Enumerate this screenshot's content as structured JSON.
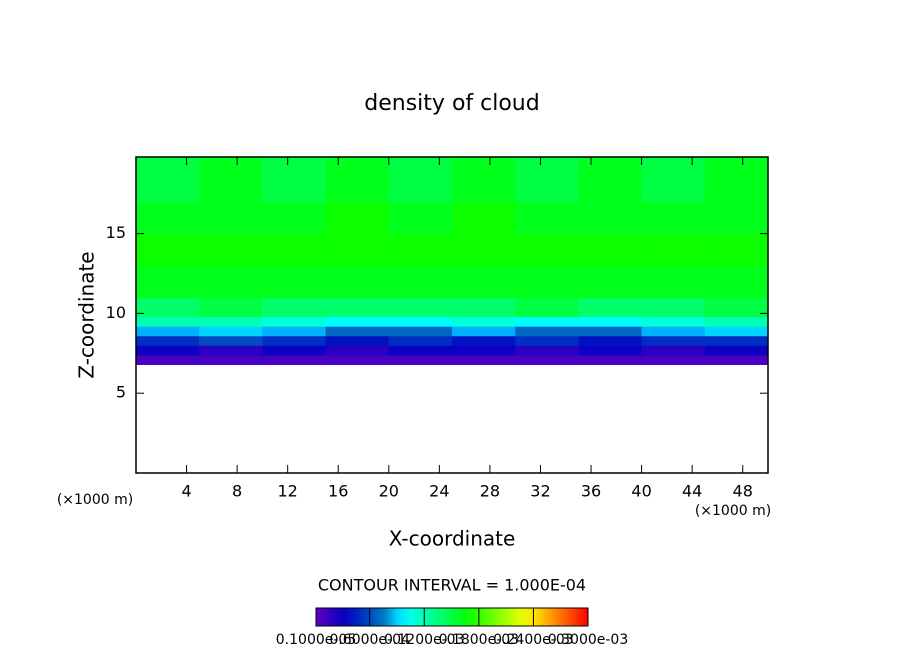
{
  "chart_data": {
    "type": "heatmap",
    "title": "density of cloud",
    "x_label": "X-coordinate",
    "y_label": "Z-coordinate",
    "x_unit": "(×1000 m)",
    "y_unit": "(×1000 m)",
    "annotation": "CONTOUR INTERVAL = 1.000E-04",
    "xlim": [
      0,
      50
    ],
    "ylim": [
      0,
      19.8
    ],
    "xticks": [
      4,
      8,
      12,
      16,
      20,
      24,
      28,
      32,
      36,
      40,
      44,
      48
    ],
    "yticks": [
      5,
      10,
      15
    ],
    "xbins": [
      0,
      5,
      10,
      15,
      20,
      25,
      30,
      35,
      40,
      45,
      50
    ],
    "ybins": [
      6.8,
      7.4,
      8.0,
      8.6,
      9.2,
      9.8,
      11,
      13,
      15,
      17,
      19.8
    ],
    "z": [
      [
        1e-05,
        1e-05,
        1e-05,
        1e-05,
        1e-05,
        1e-05,
        1e-05,
        1e-05,
        1e-05,
        1e-05
      ],
      [
        3e-05,
        2e-05,
        3e-05,
        2e-05,
        3e-05,
        3e-05,
        2e-05,
        3e-05,
        2e-05,
        3e-05
      ],
      [
        5e-05,
        6e-05,
        5e-05,
        4e-05,
        5e-05,
        4e-05,
        5e-05,
        4e-05,
        5e-05,
        5e-05
      ],
      [
        8e-05,
        9e-05,
        8e-05,
        7e-05,
        7e-05,
        8e-05,
        7e-05,
        7e-05,
        8e-05,
        9e-05
      ],
      [
        0.00012,
        0.00012,
        0.00011,
        0.0001,
        0.0001,
        0.00011,
        0.0001,
        0.0001,
        0.00011,
        0.00012
      ],
      [
        0.00014,
        0.00015,
        0.00014,
        0.00014,
        0.00014,
        0.00014,
        0.00015,
        0.00014,
        0.00014,
        0.00015
      ],
      [
        0.00016,
        0.00016,
        0.00016,
        0.00016,
        0.00016,
        0.00016,
        0.00016,
        0.00016,
        0.00016,
        0.00016
      ],
      [
        0.00017,
        0.00017,
        0.00017,
        0.00017,
        0.00017,
        0.00017,
        0.00017,
        0.00017,
        0.00017,
        0.00017
      ],
      [
        0.00016,
        0.00016,
        0.00016,
        0.00017,
        0.00016,
        0.00017,
        0.00016,
        0.00016,
        0.00016,
        0.00016
      ],
      [
        0.00015,
        0.00016,
        0.00015,
        0.00016,
        0.00015,
        0.00016,
        0.00015,
        0.00016,
        0.00015,
        0.00016
      ]
    ],
    "colorbar": {
      "ticks": [
        {
          "value": 1e-06,
          "label": "0.1000e-05"
        },
        {
          "value": 6e-05,
          "label": "0.6000e-04"
        },
        {
          "value": 0.00012,
          "label": "0.1200e-03"
        },
        {
          "value": 0.00018,
          "label": "0.1800e-03"
        },
        {
          "value": 0.00024,
          "label": "0.2400e-03"
        },
        {
          "value": 0.0003,
          "label": "0.3000e-03"
        }
      ]
    }
  }
}
